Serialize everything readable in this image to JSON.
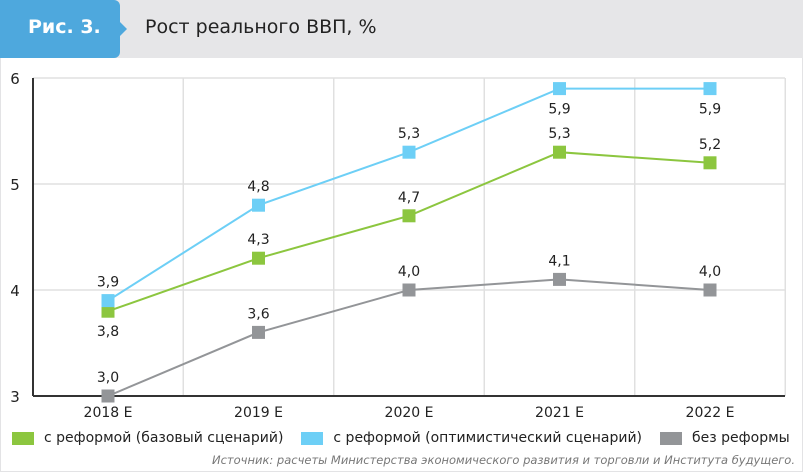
{
  "header": {
    "label": "Рис. 3.",
    "title": "Рост реального ВВП, %"
  },
  "chart_data": {
    "type": "line",
    "title": "Рост реального ВВП, %",
    "xlabel": "",
    "ylabel": "",
    "categories": [
      "2018 E",
      "2019 E",
      "2020 E",
      "2021 E",
      "2022 E"
    ],
    "ylim": [
      3,
      6
    ],
    "yticks": [
      3,
      4,
      5,
      6
    ],
    "grid": true,
    "legend_position": "bottom",
    "series": [
      {
        "name": "с реформой (базовый сценарий)",
        "color": "#8cc63f",
        "values": [
          3.8,
          4.3,
          4.7,
          5.3,
          5.2
        ],
        "labels": [
          "3,8",
          "4,3",
          "4,7",
          "5,3",
          "5,2"
        ]
      },
      {
        "name": "с реформой (оптимистический сценарий)",
        "color": "#6dcff6",
        "values": [
          3.9,
          4.8,
          5.3,
          5.9,
          5.9
        ],
        "labels": [
          "3,9",
          "4,8",
          "5,3",
          "5,9",
          "5,9"
        ]
      },
      {
        "name": "без реформы",
        "color": "#939598",
        "values": [
          3.0,
          3.6,
          4.0,
          4.1,
          4.0
        ],
        "labels": [
          "3,0",
          "3,6",
          "4,0",
          "4,1",
          "4,0"
        ]
      }
    ]
  },
  "source": "Источник: расчеты Министерства экономического развития и торговли и Института будущего."
}
